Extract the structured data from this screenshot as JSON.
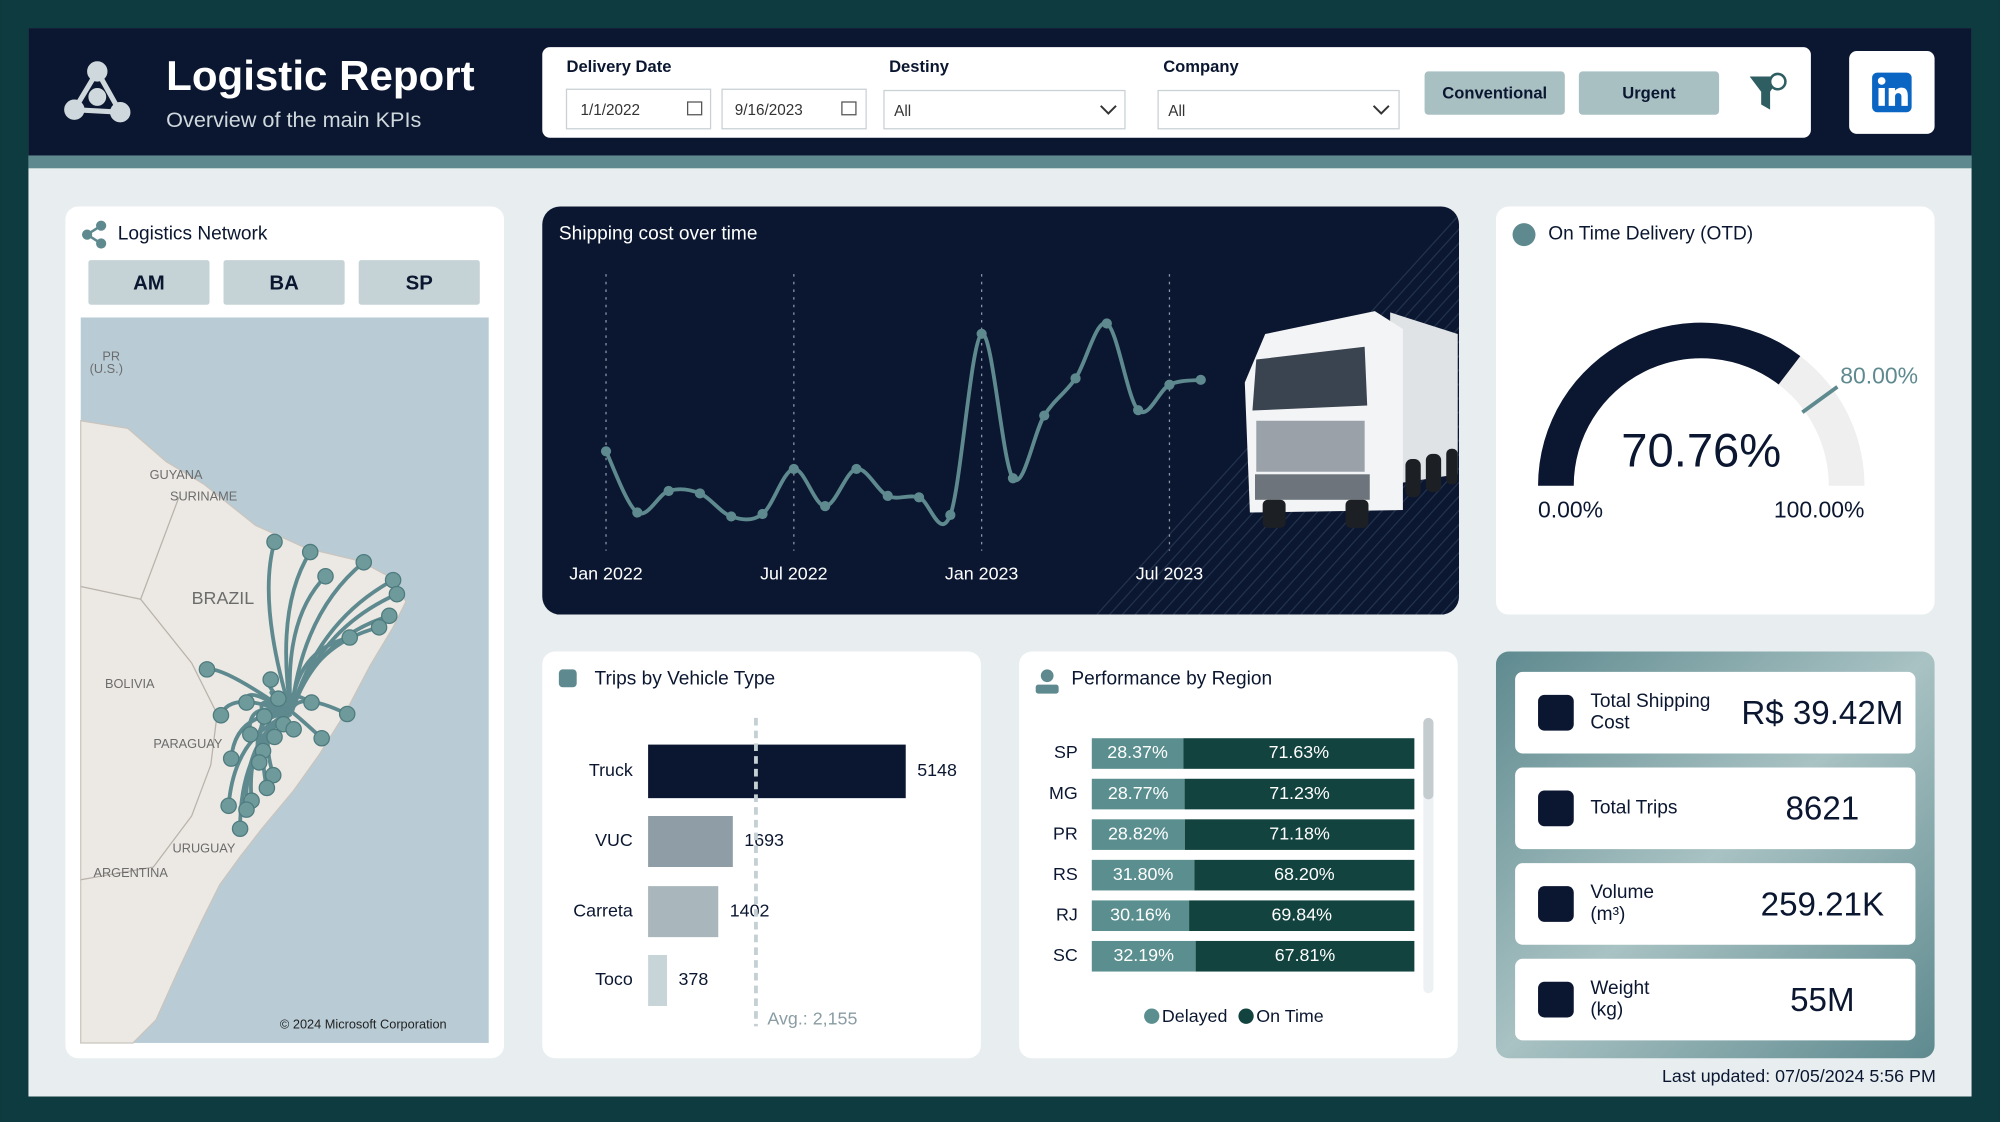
{
  "header": {
    "title": "Logistic Report",
    "subtitle": "Overview of the main KPIs"
  },
  "filters": {
    "delivery_date_label": "Delivery Date",
    "start_date": "1/1/2022",
    "end_date": "9/16/2023",
    "destiny_label": "Destiny",
    "destiny_value": "All",
    "company_label": "Company",
    "company_value": "All",
    "buttons": [
      "Conventional",
      "Urgent"
    ]
  },
  "network": {
    "title": "Logistics Network",
    "buttons": [
      "AM",
      "BA",
      "SP"
    ],
    "map_labels": [
      "PR",
      "(U.S.)",
      "GUYANA",
      "SURINAME",
      "BRAZIL",
      "BOLIVIA",
      "PARAGUAY",
      "URUGUAY",
      "ARGENTINA"
    ],
    "copyright": "© 2024 Microsoft Corporation"
  },
  "chart_data": [
    {
      "type": "line",
      "title": "Shipping cost over time",
      "categories": [
        "Jan 2022",
        null,
        null,
        null,
        null,
        null,
        "Jul 2022",
        null,
        null,
        null,
        null,
        null,
        "Jan 2023",
        null,
        null,
        null,
        null,
        null,
        "Jul 2023",
        null
      ],
      "values": [
        1.98,
        0.73,
        1.17,
        1.12,
        0.65,
        0.7,
        1.62,
        0.86,
        1.62,
        1.07,
        1.04,
        0.68,
        4.38,
        1.43,
        2.71,
        3.47,
        4.59,
        2.82,
        3.34,
        3.44
      ],
      "color": "#5e8a8f",
      "ylim": [
        0,
        5
      ]
    },
    {
      "type": "hbar",
      "title": "Trips by Vehicle Type",
      "categories": [
        "Truck",
        "VUC",
        "Carreta",
        "Toco"
      ],
      "values": [
        5148,
        1693,
        1402,
        378
      ],
      "colors": [
        "#0b1730",
        "#8f9ea6",
        "#a9b6bb",
        "#c8d5d8"
      ],
      "xlim": [
        0,
        6000
      ],
      "average": {
        "value": 2155,
        "label": "Avg.: 2,155"
      }
    },
    {
      "type": "stacked100",
      "title": "Performance by Region",
      "categories": [
        "SP",
        "MG",
        "PR",
        "RS",
        "RJ",
        "SC"
      ],
      "xlim": [
        0,
        100
      ],
      "legend": "bottom",
      "series": [
        {
          "name": "Delayed",
          "color": "#5b8f8f",
          "values": [
            28.37,
            28.77,
            28.82,
            31.8,
            30.16,
            32.19
          ],
          "value_labels": [
            "28.37%",
            "28.77%",
            "28.82%",
            "31.80%",
            "30.16%",
            "32.19%"
          ]
        },
        {
          "name": "On Time",
          "color": "#12433f",
          "values": [
            71.63,
            71.23,
            71.18,
            68.2,
            69.84,
            67.81
          ],
          "value_labels": [
            "71.63%",
            "71.23%",
            "71.18%",
            "68.20%",
            "69.84%",
            "67.81%"
          ]
        }
      ]
    },
    {
      "type": "gauge",
      "title": "On Time Delivery (OTD)",
      "value": 70.76,
      "value_label": "70.76%",
      "target": {
        "value": 80,
        "label": "80.00%"
      },
      "color": "#0b1730",
      "ylim": [
        0,
        100
      ],
      "yticks": [
        {
          "value": 0,
          "label": "0.00%"
        },
        {
          "value": 100,
          "label": "100.00%"
        }
      ]
    }
  ],
  "kpis": [
    {
      "label": [
        "Total Shipping",
        "Cost"
      ],
      "value": "R$ 39.42M"
    },
    {
      "label": [
        "Total Trips"
      ],
      "value": 8621
    },
    {
      "label": [
        "Volume",
        "(m³)"
      ],
      "value": "259.21K"
    },
    {
      "label": [
        "Weight",
        "(kg)"
      ],
      "value": "55M"
    }
  ],
  "footer": {
    "last_updated": "Last updated: 07/05/2024 5:56 PM"
  }
}
